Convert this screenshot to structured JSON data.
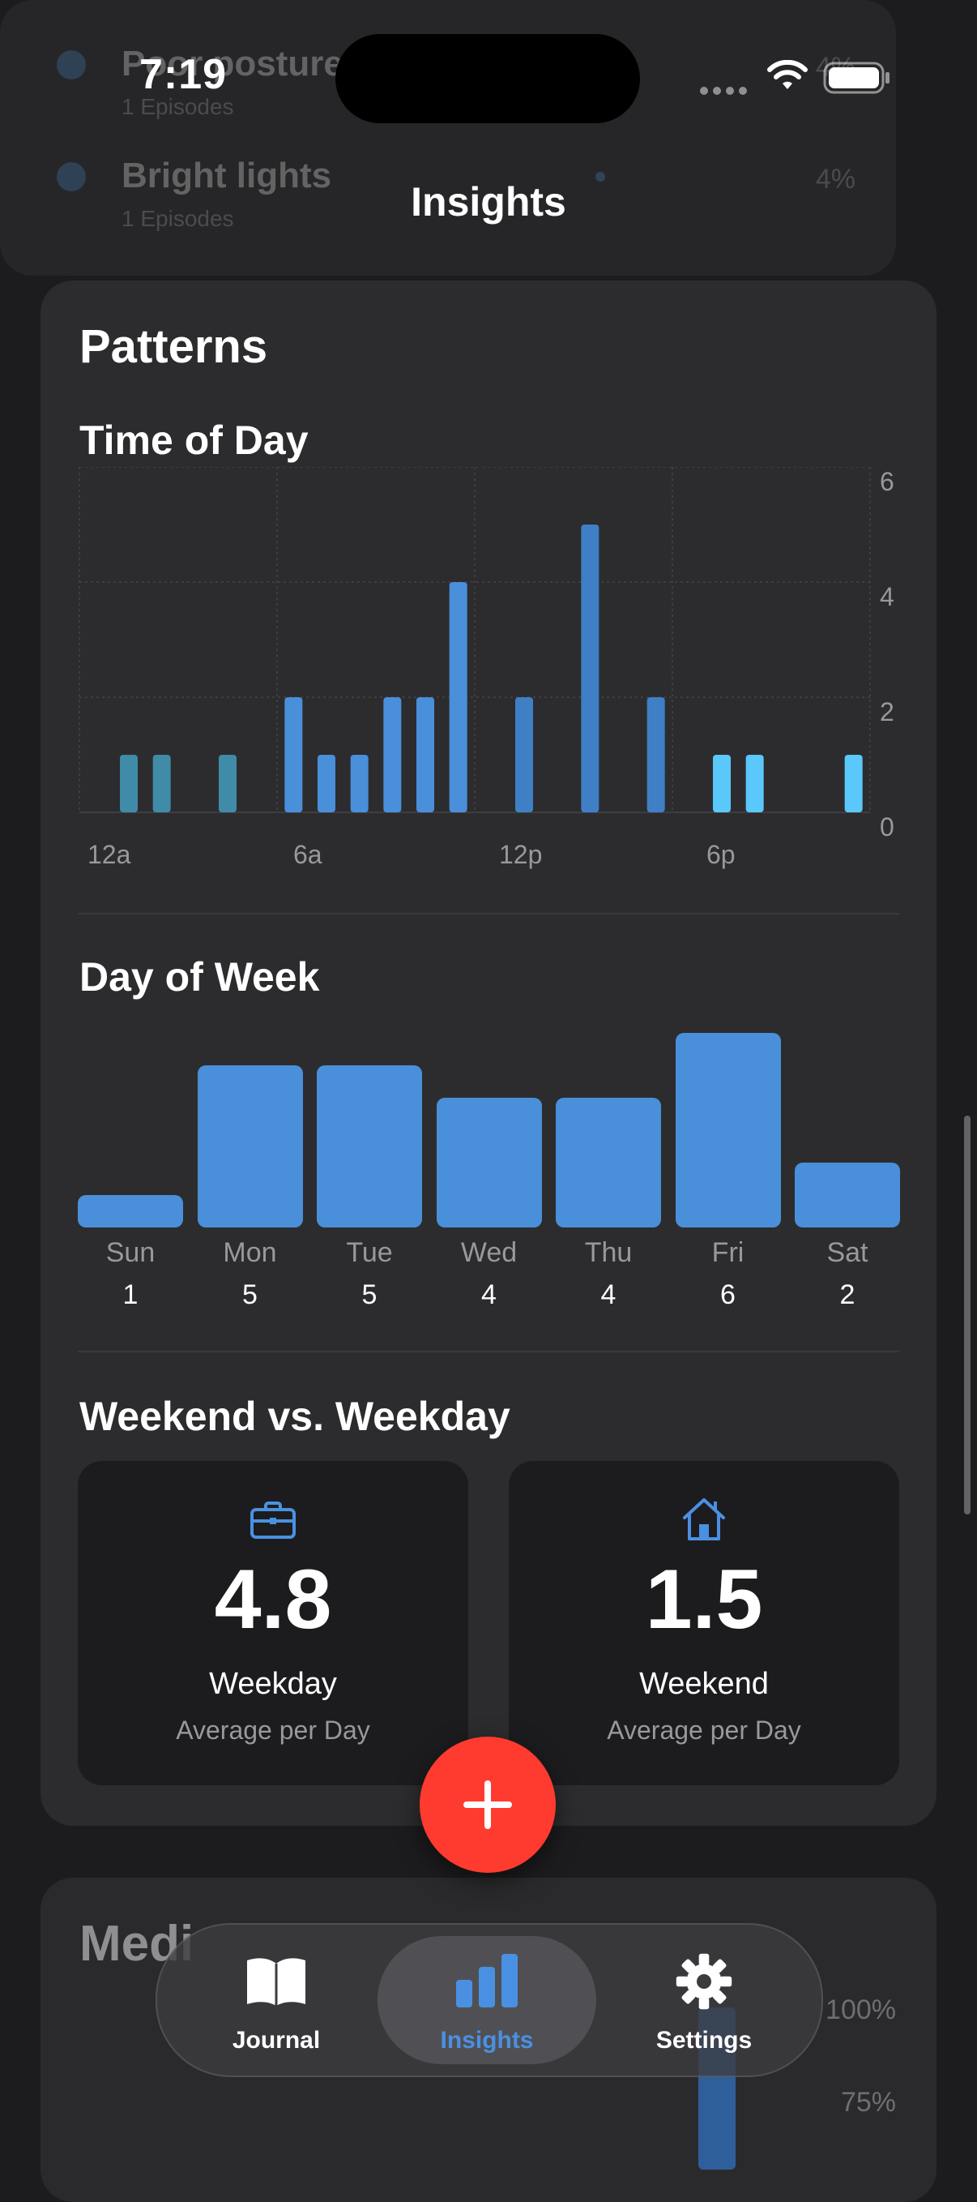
{
  "status_bar": {
    "time": "7:19"
  },
  "top_list": [
    {
      "title": "Poor posture",
      "subtitle": "1 Episodes",
      "percent": "4%"
    },
    {
      "title": "Bright lights",
      "subtitle": "1 Episodes",
      "percent": "4%"
    }
  ],
  "nav": {
    "title": "Insights"
  },
  "patterns": {
    "title": "Patterns",
    "time_of_day": {
      "title": "Time of Day",
      "x_labels": [
        "12a",
        "6a",
        "12p",
        "6p"
      ],
      "y_labels": [
        "6",
        "4",
        "2",
        "0"
      ]
    },
    "day_of_week": {
      "title": "Day of Week"
    },
    "weekend_weekday": {
      "title": "Weekend vs. Weekday",
      "weekday": {
        "value": "4.8",
        "label": "Weekday",
        "sub": "Average per Day",
        "icon": "briefcase-icon"
      },
      "weekend": {
        "value": "1.5",
        "label": "Weekend",
        "sub": "Average per Day",
        "icon": "house-icon"
      }
    }
  },
  "chart_data": [
    {
      "type": "bar",
      "title": "Time of Day",
      "x": [
        1,
        2,
        4,
        6,
        7,
        8,
        9,
        10,
        11,
        13,
        15,
        17,
        19,
        20,
        23
      ],
      "values": [
        1,
        1,
        1,
        2,
        1,
        1,
        2,
        2,
        4,
        2,
        5,
        2,
        1,
        1,
        1
      ],
      "xlabel": "",
      "ylabel": "",
      "x_tick_labels": [
        "12a",
        "6a",
        "12p",
        "6p"
      ],
      "ylim": [
        0,
        6
      ],
      "grid": true,
      "colors": {
        "night": "#3f8ba8",
        "day": "#4a8fd9",
        "evening": "#5ac8fa"
      }
    },
    {
      "type": "bar",
      "title": "Day of Week",
      "categories": [
        "Sun",
        "Mon",
        "Tue",
        "Wed",
        "Thu",
        "Fri",
        "Sat"
      ],
      "values": [
        1,
        5,
        5,
        4,
        4,
        6,
        2
      ],
      "color": "#4a8fd9"
    }
  ],
  "fab": {
    "icon": "plus-icon",
    "color": "#ff3b30"
  },
  "medication": {
    "title": "Medi",
    "pct_labels": [
      "100%",
      "75%"
    ]
  },
  "tabs": [
    {
      "label": "Journal",
      "icon": "book-icon",
      "active": false
    },
    {
      "label": "Insights",
      "icon": "chart-bar-icon",
      "active": true
    },
    {
      "label": "Settings",
      "icon": "gear-icon",
      "active": false
    }
  ],
  "accent": "#4a90e2"
}
